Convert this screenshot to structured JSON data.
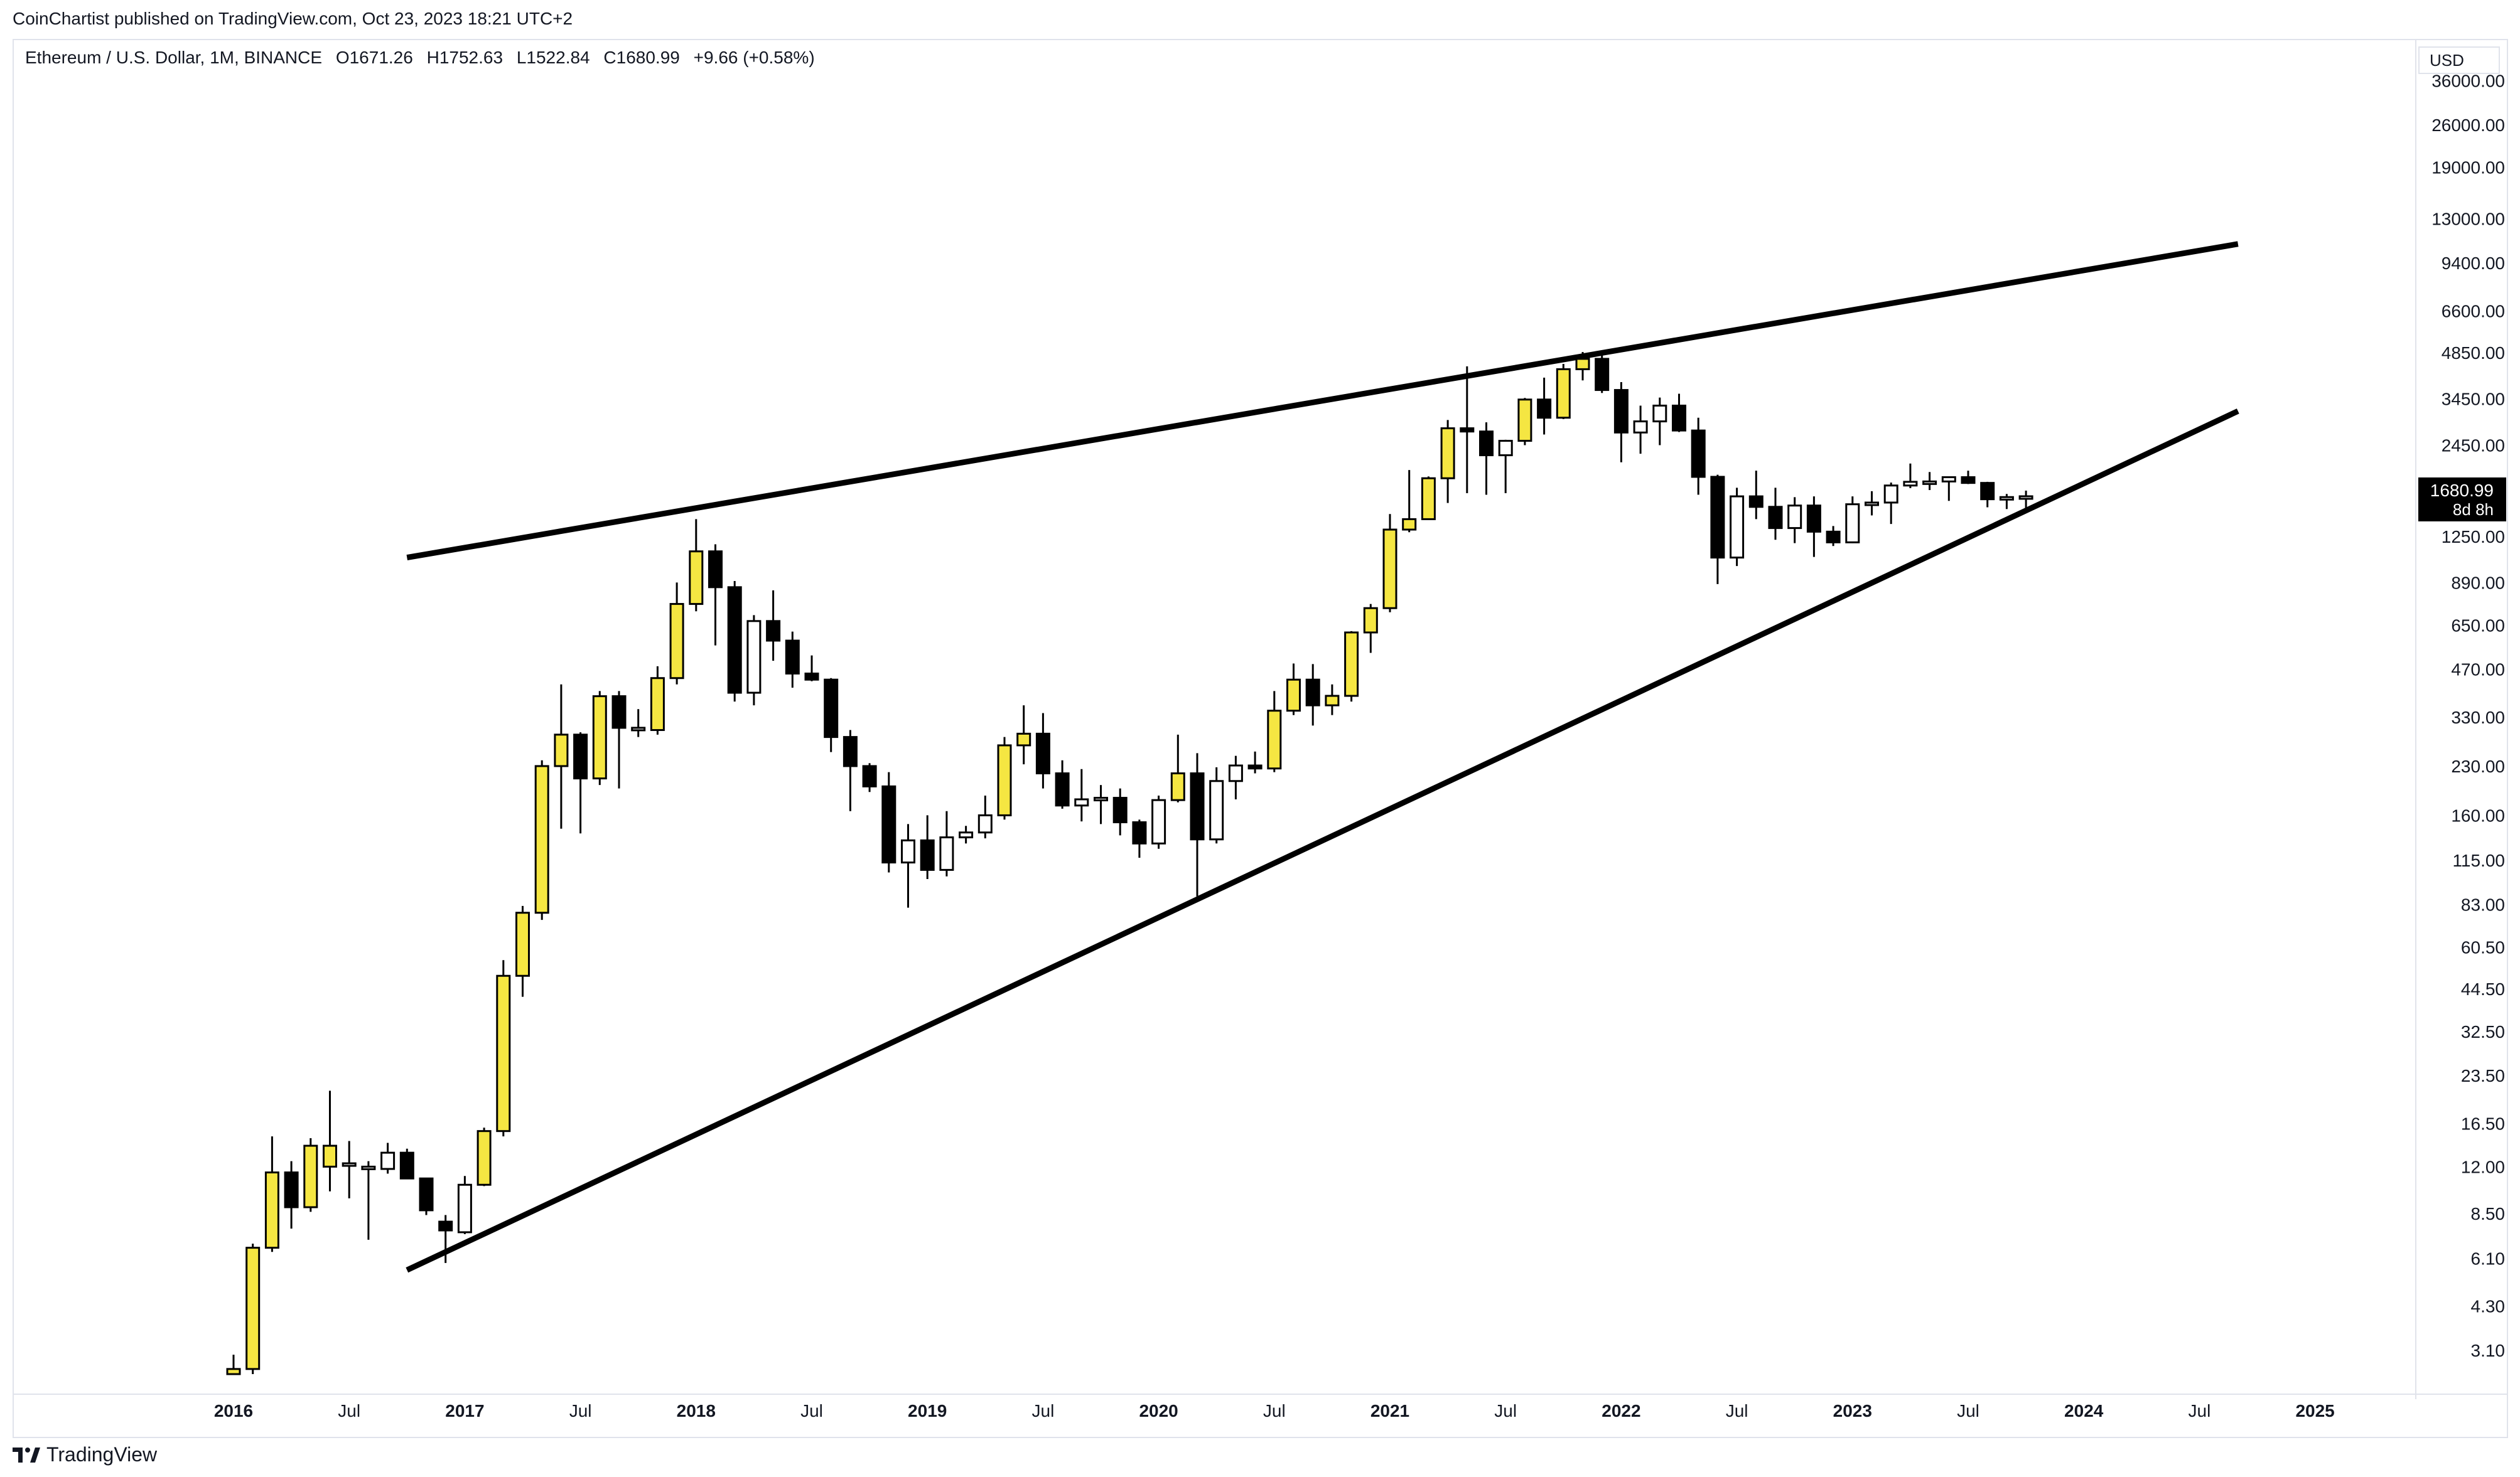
{
  "header": {
    "published": "CoinChartist published on TradingView.com, Oct 23, 2023 18:21 UTC+2"
  },
  "legend": {
    "symbol": "Ethereum / U.S. Dollar, 1M, BINANCE",
    "open": "O1671.26",
    "high": "H1752.63",
    "low": "L1522.84",
    "close": "C1680.99",
    "change": "+9.66 (+0.58%)"
  },
  "currency": "USD",
  "price_label": {
    "value": "1680.99",
    "countdown": "8d 8h"
  },
  "footer": {
    "brand": "TradingView"
  },
  "colors": {
    "bull": "#f5e642",
    "bear": "#000000",
    "neutral": "#ffffff",
    "border": "#000000",
    "trendline": "#000000"
  },
  "chart_data": {
    "type": "candlestick",
    "y_scale": "log",
    "ylim": [
      2.6,
      36000
    ],
    "y_ticks": [
      "36000.00",
      "26000.00",
      "19000.00",
      "13000.00",
      "9400.00",
      "6600.00",
      "4850.00",
      "3450.00",
      "2450.00",
      "1680.99",
      "1250.00",
      "890.00",
      "650.00",
      "470.00",
      "330.00",
      "230.00",
      "160.00",
      "115.00",
      "83.00",
      "60.50",
      "44.50",
      "32.50",
      "23.50",
      "16.50",
      "12.00",
      "8.50",
      "6.10",
      "4.30",
      "3.10"
    ],
    "x_ticks": [
      {
        "label": "2016",
        "idx": 0,
        "year": true
      },
      {
        "label": "Jul",
        "idx": 6,
        "year": false
      },
      {
        "label": "2017",
        "idx": 12,
        "year": true
      },
      {
        "label": "Jul",
        "idx": 18,
        "year": false
      },
      {
        "label": "2018",
        "idx": 24,
        "year": true
      },
      {
        "label": "Jul",
        "idx": 30,
        "year": false
      },
      {
        "label": "2019",
        "idx": 36,
        "year": true
      },
      {
        "label": "Jul",
        "idx": 42,
        "year": false
      },
      {
        "label": "2020",
        "idx": 48,
        "year": true
      },
      {
        "label": "Jul",
        "idx": 54,
        "year": false
      },
      {
        "label": "2021",
        "idx": 60,
        "year": true
      },
      {
        "label": "Jul",
        "idx": 66,
        "year": false
      },
      {
        "label": "2022",
        "idx": 72,
        "year": true
      },
      {
        "label": "Jul",
        "idx": 78,
        "year": false
      },
      {
        "label": "2023",
        "idx": 84,
        "year": true
      },
      {
        "label": "Jul",
        "idx": 90,
        "year": false
      },
      {
        "label": "2024",
        "idx": 96,
        "year": true
      },
      {
        "label": "Jul",
        "idx": 102,
        "year": false
      },
      {
        "label": "2025",
        "idx": 108,
        "year": true
      }
    ],
    "candles": [
      {
        "t": "2016-01",
        "o": 2.6,
        "h": 3.0,
        "l": 2.6,
        "c": 2.7,
        "k": "bull"
      },
      {
        "t": "2016-02",
        "o": 2.7,
        "h": 6.8,
        "l": 2.6,
        "c": 6.6,
        "k": "bull"
      },
      {
        "t": "2016-03",
        "o": 6.6,
        "h": 15.0,
        "l": 6.4,
        "c": 11.5,
        "k": "bull"
      },
      {
        "t": "2016-04",
        "o": 11.5,
        "h": 12.5,
        "l": 7.6,
        "c": 8.9,
        "k": "bear"
      },
      {
        "t": "2016-05",
        "o": 8.9,
        "h": 14.8,
        "l": 8.6,
        "c": 14.0,
        "k": "bull"
      },
      {
        "t": "2016-06",
        "o": 14.0,
        "h": 21.0,
        "l": 10.0,
        "c": 12.0,
        "k": "bull"
      },
      {
        "t": "2016-07",
        "o": 12.2,
        "h": 14.5,
        "l": 9.5,
        "c": 12.3,
        "k": "neutral"
      },
      {
        "t": "2016-08",
        "o": 12.0,
        "h": 12.5,
        "l": 7.0,
        "c": 11.8,
        "k": "neutral"
      },
      {
        "t": "2016-09",
        "o": 11.8,
        "h": 14.3,
        "l": 11.4,
        "c": 13.3,
        "k": "neutral"
      },
      {
        "t": "2016-10",
        "o": 13.3,
        "h": 13.7,
        "l": 11.0,
        "c": 11.0,
        "k": "bear"
      },
      {
        "t": "2016-11",
        "o": 11.0,
        "h": 11.0,
        "l": 8.4,
        "c": 8.7,
        "k": "bear"
      },
      {
        "t": "2016-12",
        "o": 8.0,
        "h": 8.4,
        "l": 5.9,
        "c": 7.5,
        "k": "bear"
      },
      {
        "t": "2017-01",
        "o": 7.4,
        "h": 11.2,
        "l": 7.3,
        "c": 10.5,
        "k": "neutral"
      },
      {
        "t": "2017-02",
        "o": 10.5,
        "h": 16.0,
        "l": 10.4,
        "c": 15.6,
        "k": "bull"
      },
      {
        "t": "2017-03",
        "o": 15.6,
        "h": 55.0,
        "l": 15.0,
        "c": 49.0,
        "k": "bull"
      },
      {
        "t": "2017-04",
        "o": 49.0,
        "h": 82.0,
        "l": 42.0,
        "c": 78.0,
        "k": "bull"
      },
      {
        "t": "2017-05",
        "o": 78.0,
        "h": 240.0,
        "l": 74.0,
        "c": 230.0,
        "k": "bull"
      },
      {
        "t": "2017-06",
        "o": 230.0,
        "h": 420.0,
        "l": 145.0,
        "c": 290.0,
        "k": "bull"
      },
      {
        "t": "2017-07",
        "o": 290.0,
        "h": 295.0,
        "l": 140.0,
        "c": 210.0,
        "k": "bear"
      },
      {
        "t": "2017-08",
        "o": 210.0,
        "h": 400.0,
        "l": 200.0,
        "c": 385.0,
        "k": "bull"
      },
      {
        "t": "2017-09",
        "o": 385.0,
        "h": 400.0,
        "l": 195.0,
        "c": 305.0,
        "k": "bear"
      },
      {
        "t": "2017-10",
        "o": 305.0,
        "h": 350.0,
        "l": 285.0,
        "c": 305.0,
        "k": "neutral"
      },
      {
        "t": "2017-11",
        "o": 300.0,
        "h": 480.0,
        "l": 290.0,
        "c": 440.0,
        "k": "bull"
      },
      {
        "t": "2017-12",
        "o": 440.0,
        "h": 890.0,
        "l": 420.0,
        "c": 760.0,
        "k": "bull"
      },
      {
        "t": "2018-01",
        "o": 760.0,
        "h": 1420.0,
        "l": 720.0,
        "c": 1120.0,
        "k": "bull"
      },
      {
        "t": "2018-02",
        "o": 1120.0,
        "h": 1180.0,
        "l": 560.0,
        "c": 860.0,
        "k": "bear"
      },
      {
        "t": "2018-03",
        "o": 860.0,
        "h": 900.0,
        "l": 370.0,
        "c": 395.0,
        "k": "bear"
      },
      {
        "t": "2018-04",
        "o": 395.0,
        "h": 700.0,
        "l": 360.0,
        "c": 670.0,
        "k": "neutral"
      },
      {
        "t": "2018-05",
        "o": 670.0,
        "h": 840.0,
        "l": 500.0,
        "c": 580.0,
        "k": "bear"
      },
      {
        "t": "2018-06",
        "o": 580.0,
        "h": 620.0,
        "l": 410.0,
        "c": 455.0,
        "k": "bear"
      },
      {
        "t": "2018-07",
        "o": 455.0,
        "h": 520.0,
        "l": 430.0,
        "c": 435.0,
        "k": "bear"
      },
      {
        "t": "2018-08",
        "o": 435.0,
        "h": 440.0,
        "l": 255.0,
        "c": 285.0,
        "k": "bear"
      },
      {
        "t": "2018-09",
        "o": 285.0,
        "h": 300.0,
        "l": 165.0,
        "c": 230.0,
        "k": "bear"
      },
      {
        "t": "2018-10",
        "o": 230.0,
        "h": 235.0,
        "l": 190.0,
        "c": 198.0,
        "k": "bear"
      },
      {
        "t": "2018-11",
        "o": 198.0,
        "h": 220.0,
        "l": 105.0,
        "c": 113.0,
        "k": "bear"
      },
      {
        "t": "2018-12",
        "o": 113.0,
        "h": 150.0,
        "l": 81.0,
        "c": 133.0,
        "k": "neutral"
      },
      {
        "t": "2019-01",
        "o": 133.0,
        "h": 160.0,
        "l": 100.0,
        "c": 107.0,
        "k": "bear"
      },
      {
        "t": "2019-02",
        "o": 107.0,
        "h": 165.0,
        "l": 102.0,
        "c": 136.0,
        "k": "neutral"
      },
      {
        "t": "2019-03",
        "o": 136.0,
        "h": 148.0,
        "l": 130.0,
        "c": 141.0,
        "k": "neutral"
      },
      {
        "t": "2019-04",
        "o": 141.0,
        "h": 185.0,
        "l": 135.0,
        "c": 160.0,
        "k": "neutral"
      },
      {
        "t": "2019-05",
        "o": 160.0,
        "h": 285.0,
        "l": 155.0,
        "c": 268.0,
        "k": "bull"
      },
      {
        "t": "2019-06",
        "o": 268.0,
        "h": 360.0,
        "l": 233.0,
        "c": 292.0,
        "k": "bull"
      },
      {
        "t": "2019-07",
        "o": 292.0,
        "h": 340.0,
        "l": 195.0,
        "c": 218.0,
        "k": "bear"
      },
      {
        "t": "2019-08",
        "o": 218.0,
        "h": 240.0,
        "l": 168.0,
        "c": 172.0,
        "k": "bear"
      },
      {
        "t": "2019-09",
        "o": 172.0,
        "h": 225.0,
        "l": 153.0,
        "c": 180.0,
        "k": "neutral"
      },
      {
        "t": "2019-10",
        "o": 180.0,
        "h": 200.0,
        "l": 150.0,
        "c": 182.0,
        "k": "neutral"
      },
      {
        "t": "2019-11",
        "o": 182.0,
        "h": 195.0,
        "l": 138.0,
        "c": 152.0,
        "k": "bear"
      },
      {
        "t": "2019-12",
        "o": 152.0,
        "h": 155.0,
        "l": 117.0,
        "c": 130.0,
        "k": "bear"
      },
      {
        "t": "2020-01",
        "o": 130.0,
        "h": 185.0,
        "l": 125.0,
        "c": 179.0,
        "k": "neutral"
      },
      {
        "t": "2020-02",
        "o": 179.0,
        "h": 290.0,
        "l": 176.0,
        "c": 218.0,
        "k": "bull"
      },
      {
        "t": "2020-03",
        "o": 218.0,
        "h": 253.0,
        "l": 88.0,
        "c": 134.0,
        "k": "bear"
      },
      {
        "t": "2020-04",
        "o": 134.0,
        "h": 228.0,
        "l": 130.0,
        "c": 206.0,
        "k": "neutral"
      },
      {
        "t": "2020-05",
        "o": 206.0,
        "h": 248.0,
        "l": 180.0,
        "c": 231.0,
        "k": "neutral"
      },
      {
        "t": "2020-06",
        "o": 231.0,
        "h": 256.0,
        "l": 218.0,
        "c": 226.0,
        "k": "bear"
      },
      {
        "t": "2020-07",
        "o": 226.0,
        "h": 400.0,
        "l": 220.0,
        "c": 346.0,
        "k": "bull"
      },
      {
        "t": "2020-08",
        "o": 346.0,
        "h": 490.0,
        "l": 335.0,
        "c": 435.0,
        "k": "bull"
      },
      {
        "t": "2020-09",
        "o": 435.0,
        "h": 488.0,
        "l": 310.0,
        "c": 360.0,
        "k": "bear"
      },
      {
        "t": "2020-10",
        "o": 360.0,
        "h": 420.0,
        "l": 335.0,
        "c": 386.0,
        "k": "bull"
      },
      {
        "t": "2020-11",
        "o": 386.0,
        "h": 622.0,
        "l": 370.0,
        "c": 616.0,
        "k": "bull"
      },
      {
        "t": "2020-12",
        "o": 616.0,
        "h": 760.0,
        "l": 530.0,
        "c": 737.0,
        "k": "bull"
      },
      {
        "t": "2021-01",
        "o": 737.0,
        "h": 1475.0,
        "l": 715.0,
        "c": 1315.0,
        "k": "bull"
      },
      {
        "t": "2021-02",
        "o": 1315.0,
        "h": 2040.0,
        "l": 1290.0,
        "c": 1420.0,
        "k": "bull"
      },
      {
        "t": "2021-03",
        "o": 1420.0,
        "h": 1945.0,
        "l": 1440.0,
        "c": 1920.0,
        "k": "bull"
      },
      {
        "t": "2021-04",
        "o": 1920.0,
        "h": 2950.0,
        "l": 1600.0,
        "c": 2775.0,
        "k": "bull"
      },
      {
        "t": "2021-05",
        "o": 2775.0,
        "h": 4380.0,
        "l": 1720.0,
        "c": 2710.0,
        "k": "bear"
      },
      {
        "t": "2021-06",
        "o": 2710.0,
        "h": 2900.0,
        "l": 1700.0,
        "c": 2275.0,
        "k": "bear"
      },
      {
        "t": "2021-07",
        "o": 2275.0,
        "h": 2550.0,
        "l": 1720.0,
        "c": 2530.0,
        "k": "neutral"
      },
      {
        "t": "2021-08",
        "o": 2530.0,
        "h": 3470.0,
        "l": 2450.0,
        "c": 3430.0,
        "k": "bull"
      },
      {
        "t": "2021-09",
        "o": 3430.0,
        "h": 4030.0,
        "l": 2650.0,
        "c": 3000.0,
        "k": "bear"
      },
      {
        "t": "2021-10",
        "o": 3000.0,
        "h": 4460.0,
        "l": 2970.0,
        "c": 4290.0,
        "k": "bull"
      },
      {
        "t": "2021-11",
        "o": 4290.0,
        "h": 4870.0,
        "l": 3950.0,
        "c": 4630.0,
        "k": "bull"
      },
      {
        "t": "2021-12",
        "o": 4630.0,
        "h": 4780.0,
        "l": 3600.0,
        "c": 3680.0,
        "k": "bear"
      },
      {
        "t": "2022-01",
        "o": 3680.0,
        "h": 3900.0,
        "l": 2160.0,
        "c": 2690.0,
        "k": "bear"
      },
      {
        "t": "2022-02",
        "o": 2690.0,
        "h": 3280.0,
        "l": 2300.0,
        "c": 2920.0,
        "k": "neutral"
      },
      {
        "t": "2022-03",
        "o": 2920.0,
        "h": 3480.0,
        "l": 2450.0,
        "c": 3280.0,
        "k": "neutral"
      },
      {
        "t": "2022-04",
        "o": 3280.0,
        "h": 3580.0,
        "l": 2700.0,
        "c": 2730.0,
        "k": "bear"
      },
      {
        "t": "2022-05",
        "o": 2730.0,
        "h": 3000.0,
        "l": 1700.0,
        "c": 1940.0,
        "k": "bear"
      },
      {
        "t": "2022-06",
        "o": 1940.0,
        "h": 1970.0,
        "l": 880.0,
        "c": 1070.0,
        "k": "bear"
      },
      {
        "t": "2022-07",
        "o": 1070.0,
        "h": 1790.0,
        "l": 1005.0,
        "c": 1680.0,
        "k": "neutral"
      },
      {
        "t": "2022-08",
        "o": 1680.0,
        "h": 2030.0,
        "l": 1420.0,
        "c": 1555.0,
        "k": "bear"
      },
      {
        "t": "2022-09",
        "o": 1555.0,
        "h": 1790.0,
        "l": 1220.0,
        "c": 1330.0,
        "k": "bear"
      },
      {
        "t": "2022-10",
        "o": 1330.0,
        "h": 1670.0,
        "l": 1190.0,
        "c": 1570.0,
        "k": "neutral"
      },
      {
        "t": "2022-11",
        "o": 1570.0,
        "h": 1680.0,
        "l": 1075.0,
        "c": 1295.0,
        "k": "bear"
      },
      {
        "t": "2022-12",
        "o": 1295.0,
        "h": 1350.0,
        "l": 1165.0,
        "c": 1197.0,
        "k": "bear"
      },
      {
        "t": "2023-01",
        "o": 1197.0,
        "h": 1680.0,
        "l": 1190.0,
        "c": 1585.0,
        "k": "neutral"
      },
      {
        "t": "2023-02",
        "o": 1585.0,
        "h": 1745.0,
        "l": 1460.0,
        "c": 1605.0,
        "k": "neutral"
      },
      {
        "t": "2023-03",
        "o": 1605.0,
        "h": 1860.0,
        "l": 1370.0,
        "c": 1820.0,
        "k": "neutral"
      },
      {
        "t": "2023-04",
        "o": 1820.0,
        "h": 2140.0,
        "l": 1785.0,
        "c": 1870.0,
        "k": "neutral"
      },
      {
        "t": "2023-05",
        "o": 1870.0,
        "h": 2010.0,
        "l": 1760.0,
        "c": 1875.0,
        "k": "neutral"
      },
      {
        "t": "2023-06",
        "o": 1875.0,
        "h": 1930.0,
        "l": 1625.0,
        "c": 1935.0,
        "k": "neutral"
      },
      {
        "t": "2023-07",
        "o": 1935.0,
        "h": 2030.0,
        "l": 1840.0,
        "c": 1855.0,
        "k": "bear"
      },
      {
        "t": "2023-08",
        "o": 1855.0,
        "h": 1870.0,
        "l": 1550.0,
        "c": 1645.0,
        "k": "bear"
      },
      {
        "t": "2023-09",
        "o": 1645.0,
        "h": 1710.0,
        "l": 1530.0,
        "c": 1671.0,
        "k": "neutral"
      },
      {
        "t": "2023-10",
        "o": 1671.26,
        "h": 1752.63,
        "l": 1522.84,
        "c": 1680.99,
        "k": "neutral"
      }
    ],
    "trendlines": [
      {
        "from": {
          "t": "2016-10",
          "price": 1070
        },
        "to": {
          "t": "2024-09",
          "price": 10800
        }
      },
      {
        "from": {
          "t": "2016-10",
          "price": 5.6
        },
        "to": {
          "t": "2024-09",
          "price": 3150
        }
      }
    ]
  }
}
